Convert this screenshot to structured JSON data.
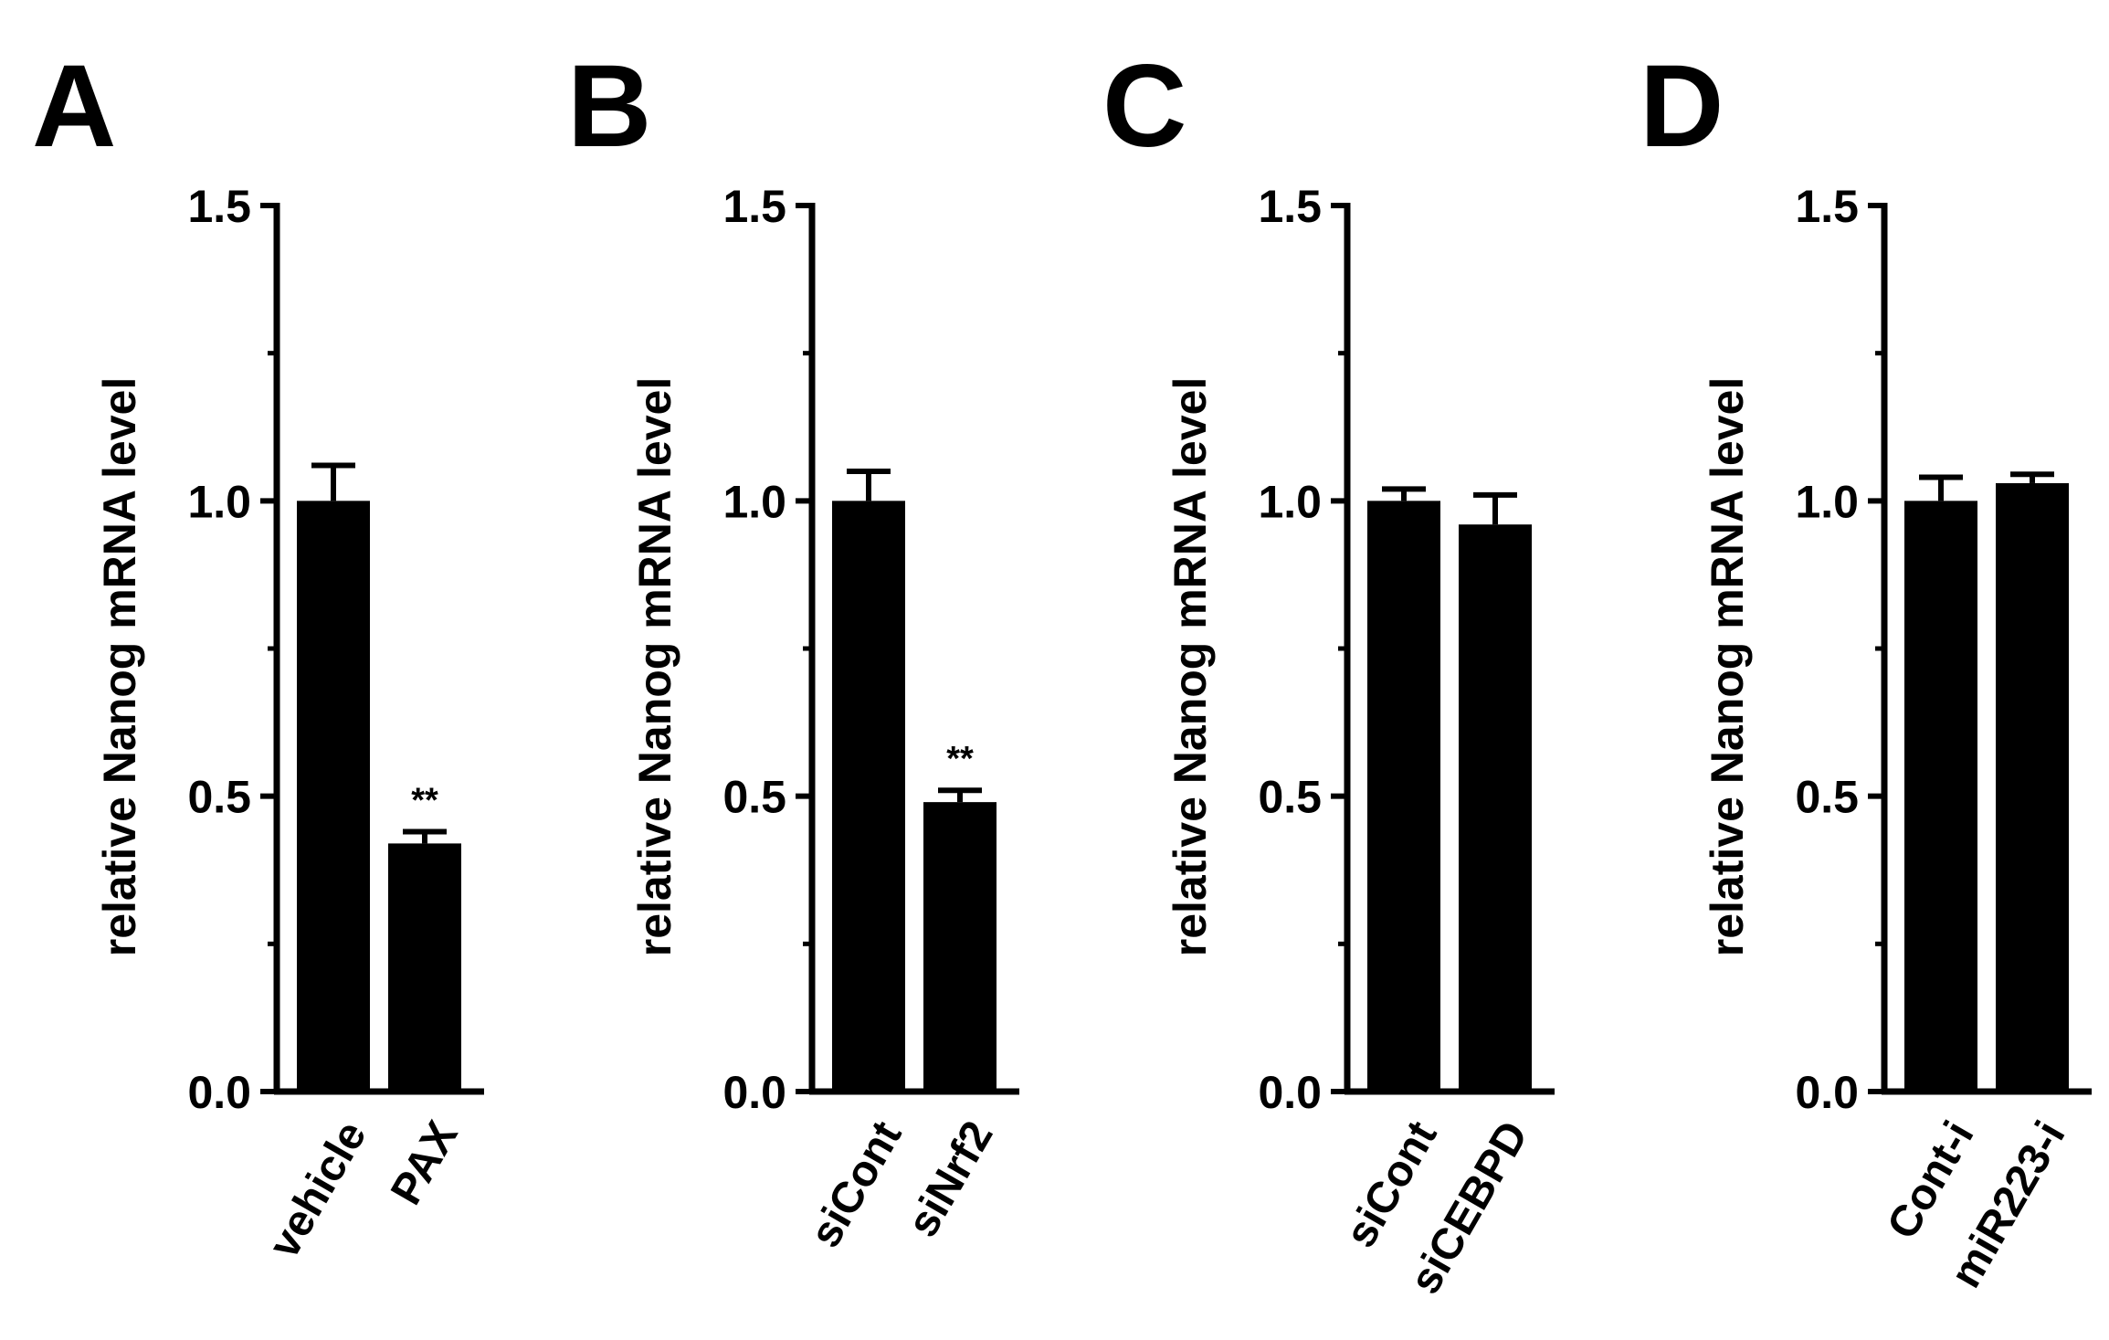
{
  "chart_data": [
    {
      "panel_label": "A",
      "type": "bar",
      "ylabel": "relative Nanog mRNA level",
      "ylim": [
        0,
        1.5
      ],
      "yticks": [
        "0.0",
        "0.5",
        "1.0",
        "1.5"
      ],
      "categories": [
        "vehicle",
        "PAX"
      ],
      "values": [
        1.0,
        0.42
      ],
      "errors": [
        0.06,
        0.02
      ],
      "annotations": [
        "",
        "**"
      ],
      "color": "#000000"
    },
    {
      "panel_label": "B",
      "type": "bar",
      "ylabel": "relative Nanog mRNA level",
      "ylim": [
        0,
        1.5
      ],
      "yticks": [
        "0.0",
        "0.5",
        "1.0",
        "1.5"
      ],
      "categories": [
        "siCont",
        "siNrf2"
      ],
      "values": [
        1.0,
        0.49
      ],
      "errors": [
        0.05,
        0.02
      ],
      "annotations": [
        "",
        "**"
      ],
      "color": "#000000"
    },
    {
      "panel_label": "C",
      "type": "bar",
      "ylabel": "relative Nanog mRNA level",
      "ylim": [
        0,
        1.5
      ],
      "yticks": [
        "0.0",
        "0.5",
        "1.0",
        "1.5"
      ],
      "categories": [
        "siCont",
        "siCEBPD"
      ],
      "values": [
        1.0,
        0.96
      ],
      "errors": [
        0.02,
        0.05
      ],
      "annotations": [
        "",
        ""
      ],
      "color": "#000000"
    },
    {
      "panel_label": "D",
      "type": "bar",
      "ylabel": "relative Nanog mRNA level",
      "ylim": [
        0,
        1.5
      ],
      "yticks": [
        "0.0",
        "0.5",
        "1.0",
        "1.5"
      ],
      "categories": [
        "Cont-i",
        "miR223-i"
      ],
      "values": [
        1.0,
        1.03
      ],
      "errors": [
        0.04,
        0.015
      ],
      "annotations": [
        "",
        ""
      ],
      "color": "#000000"
    }
  ]
}
